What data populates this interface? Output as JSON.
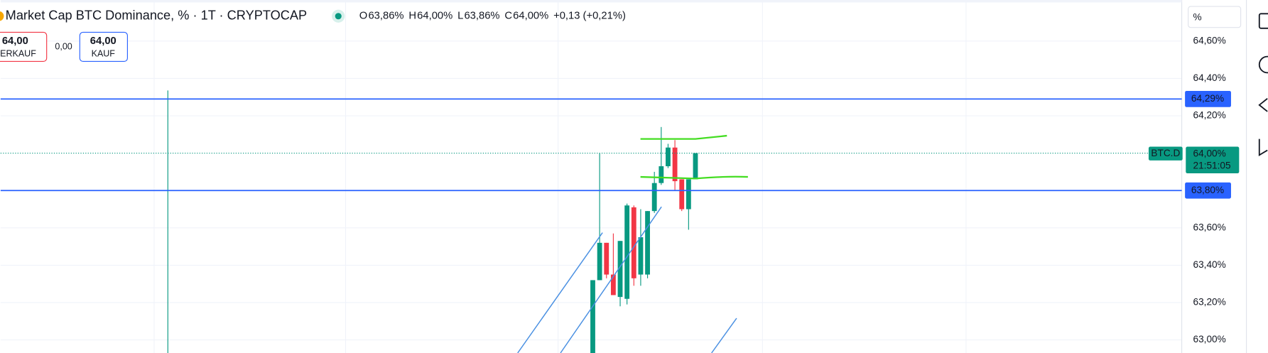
{
  "header": {
    "title": "Market Cap BTC Dominance, % · 1T · CRYPTOCAP",
    "ohlc": [
      {
        "key": "O",
        "value": "63,86%"
      },
      {
        "key": "H",
        "value": "64,00%"
      },
      {
        "key": "L",
        "value": "63,86%"
      },
      {
        "key": "C",
        "value": "64,00%"
      }
    ],
    "change": "+0,13 (+0,21%)"
  },
  "trade": {
    "sell_price": "64,00",
    "sell_label": "VERKAUF",
    "spread": "0,00",
    "buy_price": "64,00",
    "buy_label": "KAUF"
  },
  "scale_unit": "%",
  "chart_data": {
    "type": "candlestick",
    "ylim": [
      62.93,
      64.82
    ],
    "yticks": [
      {
        "value": 64.6,
        "label": "64,60%"
      },
      {
        "value": 64.4,
        "label": "64,40%"
      },
      {
        "value": 64.2,
        "label": "64,20%"
      },
      {
        "value": 63.6,
        "label": "63,60%"
      },
      {
        "value": 63.4,
        "label": "63,40%"
      },
      {
        "value": 63.2,
        "label": "63,20%"
      },
      {
        "value": 63.0,
        "label": "63,00%"
      }
    ],
    "grid": true,
    "up_color": "#089981",
    "down_color": "#f23645",
    "candles": [
      {
        "open": 62.9,
        "high": 63.32,
        "low": 62.9,
        "close": 63.32
      },
      {
        "open": 63.32,
        "high": 64.0,
        "low": 63.32,
        "close": 63.52
      },
      {
        "open": 63.52,
        "high": 63.52,
        "low": 63.33,
        "close": 63.35
      },
      {
        "open": 63.35,
        "high": 63.57,
        "low": 63.24,
        "close": 63.24
      },
      {
        "open": 63.23,
        "high": 63.53,
        "low": 63.18,
        "close": 63.53
      },
      {
        "open": 63.22,
        "high": 63.73,
        "low": 63.19,
        "close": 63.72
      },
      {
        "open": 63.71,
        "high": 63.72,
        "low": 63.29,
        "close": 63.33
      },
      {
        "open": 63.35,
        "high": 63.7,
        "low": 63.29,
        "close": 63.55
      },
      {
        "open": 63.35,
        "high": 63.69,
        "low": 63.33,
        "close": 63.69
      },
      {
        "open": 63.69,
        "high": 63.9,
        "low": 63.68,
        "close": 63.84
      },
      {
        "open": 63.84,
        "high": 64.14,
        "low": 63.83,
        "close": 63.93
      },
      {
        "open": 63.93,
        "high": 64.05,
        "low": 63.92,
        "close": 64.03
      },
      {
        "open": 64.03,
        "high": 64.07,
        "low": 63.8,
        "close": 63.85
      },
      {
        "open": 63.86,
        "high": 63.86,
        "low": 63.69,
        "close": 63.7
      },
      {
        "open": 63.7,
        "high": 63.86,
        "low": 63.59,
        "close": 63.86
      },
      {
        "open": 63.86,
        "high": 64.0,
        "low": 63.86,
        "close": 64.0
      }
    ],
    "hlines": [
      {
        "value": 64.29,
        "label": "64,29%",
        "color": "#2962ff"
      },
      {
        "value": 63.8,
        "label": "63,80%",
        "color": "#2962ff"
      }
    ],
    "last_price": {
      "value": 64.0,
      "label": "64,00%",
      "countdown": "21:51:05",
      "symbol": "BTC.D",
      "color": "#089981"
    }
  }
}
